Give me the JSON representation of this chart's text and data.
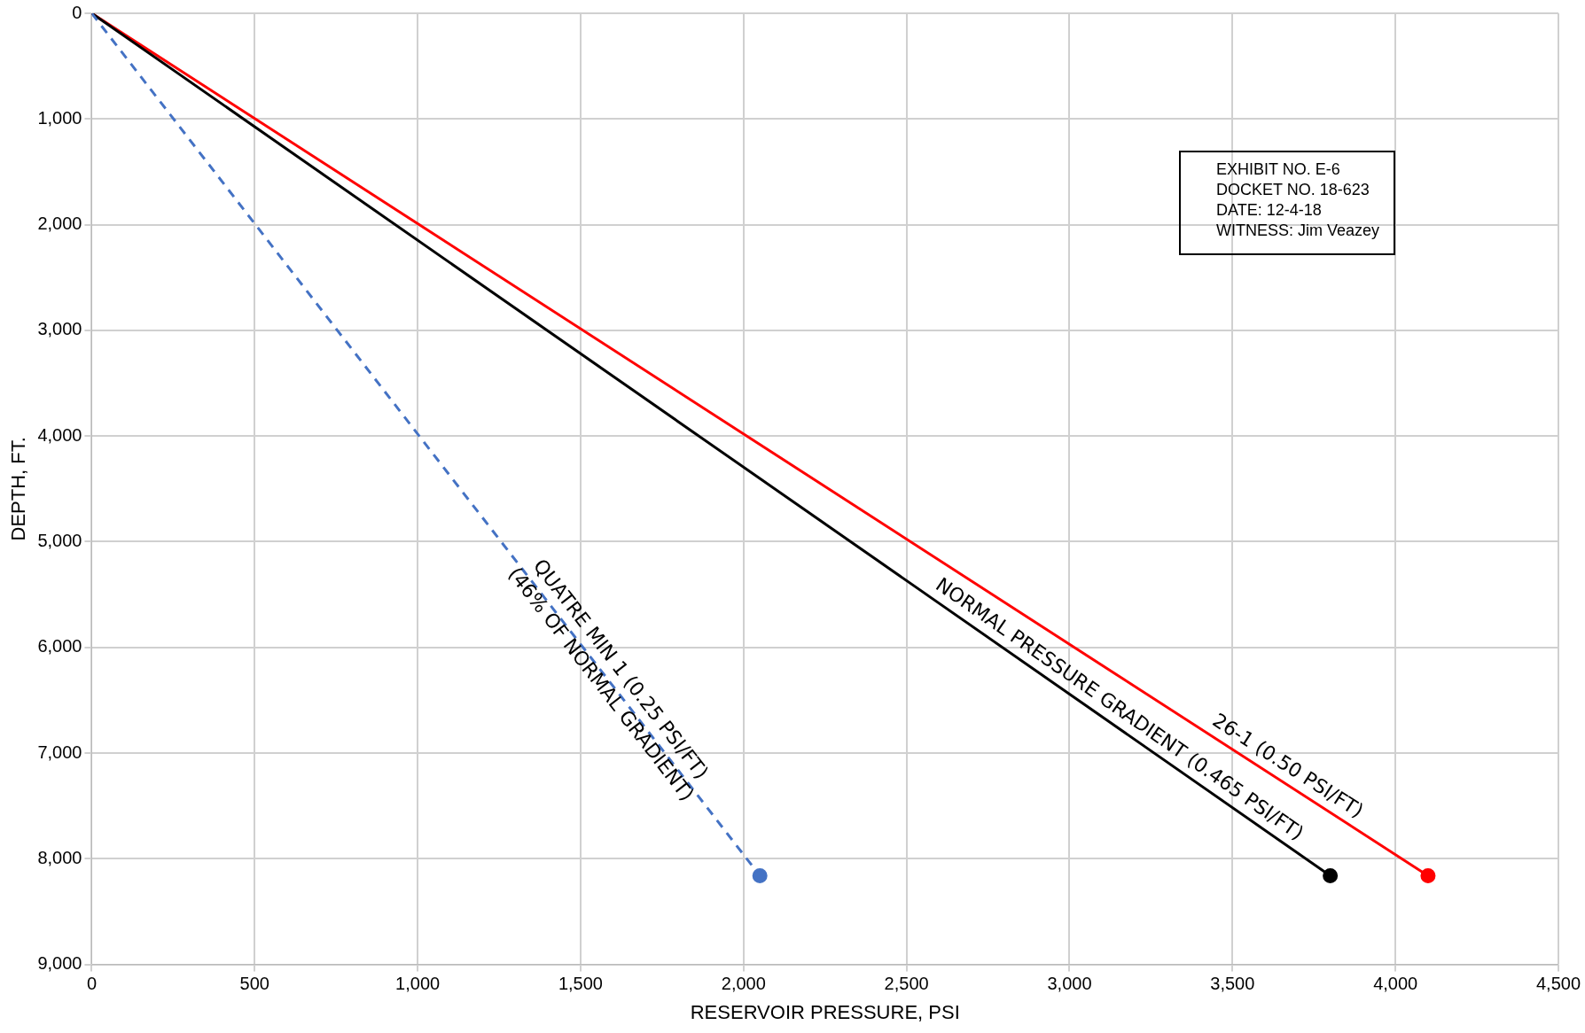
{
  "chart_data": {
    "type": "line",
    "xlabel": "RESERVOIR PRESSURE, PSI",
    "ylabel": "DEPTH, FT.",
    "xlim": [
      0,
      4500
    ],
    "xticks": [
      0,
      500,
      {
        "value": 1000,
        "label": "1,000"
      },
      {
        "value": 1500,
        "label": "1,500"
      },
      {
        "value": 2000,
        "label": "2,000"
      },
      {
        "value": 2500,
        "label": "2,500"
      },
      {
        "value": 3000,
        "label": "3,000"
      },
      {
        "value": 3500,
        "label": "3,500"
      },
      {
        "value": 4000,
        "label": "4,000"
      },
      {
        "value": 4500,
        "label": "4,500"
      }
    ],
    "ylim": [
      9000,
      0
    ],
    "yticks": [
      0,
      {
        "value": 1000,
        "label": "1,000"
      },
      {
        "value": 2000,
        "label": "2,000"
      },
      {
        "value": 3000,
        "label": "3,000"
      },
      {
        "value": 4000,
        "label": "4,000"
      },
      {
        "value": 5000,
        "label": "5,000"
      },
      {
        "value": 6000,
        "label": "6,000"
      },
      {
        "value": 7000,
        "label": "7,000"
      },
      {
        "value": 8000,
        "label": "8,000"
      },
      {
        "value": 9000,
        "label": "9,000"
      }
    ],
    "grid": true,
    "legend": false,
    "marker": "circle",
    "series": [
      {
        "color": "#4472c4",
        "x": [
          0,
          2050
        ],
        "values": [
          0,
          8160
        ],
        "line_style": "dashed"
      },
      {
        "color": "#000000",
        "x": [
          0,
          3800
        ],
        "values": [
          0,
          8160
        ],
        "line_style": "solid"
      },
      {
        "color": "#ff0000",
        "x": [
          0,
          4100
        ],
        "values": [
          0,
          8160
        ],
        "line_style": "solid"
      }
    ],
    "annotations": [
      {
        "text": "QUATRE MIN 1 (0.25 PSI/FT)",
        "x": 1583,
        "y": 6300
      },
      {
        "text": "(46% OF NORMAL GRADIENT)",
        "x": 1583,
        "y": 6300
      },
      {
        "text": "NORMAL PRESSURE GRADIENT (0.465 PSI/FT)",
        "x": 3125,
        "y": 6710
      },
      {
        "text": "26-1 (0.50 PSI/FT)",
        "x": 3643,
        "y": 7250
      },
      "EXHIBIT NO. E-6",
      "DOCKET NO. 18-623",
      "DATE: 12-4-18",
      "WITNESS: Jim Veazey"
    ]
  }
}
